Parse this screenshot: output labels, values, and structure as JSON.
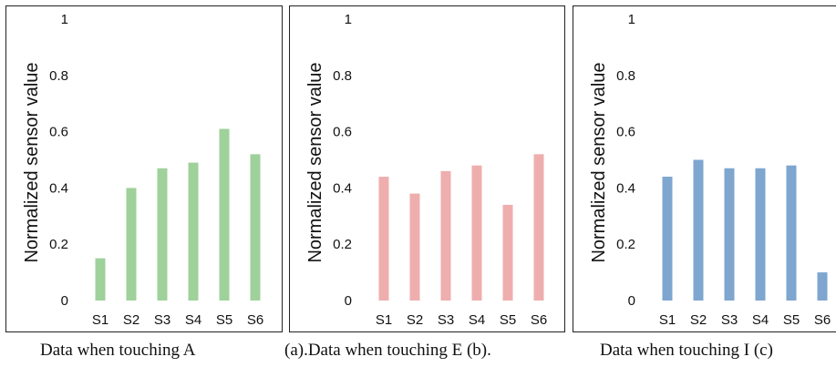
{
  "chart_data": [
    {
      "type": "bar",
      "categories": [
        "S1",
        "S2",
        "S3",
        "S4",
        "S5",
        "S6"
      ],
      "values": [
        0.15,
        0.4,
        0.47,
        0.49,
        0.61,
        0.52
      ],
      "ylabel": "Normalized sensor value",
      "ylim": [
        0,
        1
      ],
      "yticks": [
        "0",
        "0.2",
        "0.4",
        "0.6",
        "0.8",
        "1"
      ],
      "color": "#9fd19b",
      "grid": false
    },
    {
      "type": "bar",
      "categories": [
        "S1",
        "S2",
        "S3",
        "S4",
        "S5",
        "S6"
      ],
      "values": [
        0.44,
        0.38,
        0.46,
        0.48,
        0.34,
        0.52
      ],
      "ylabel": "Normalized sensor value",
      "ylim": [
        0,
        1
      ],
      "yticks": [
        "0",
        "0.2",
        "0.4",
        "0.6",
        "0.8",
        "1"
      ],
      "color": "#efaeae",
      "grid": false
    },
    {
      "type": "bar",
      "categories": [
        "S1",
        "S2",
        "S3",
        "S4",
        "S5",
        "S6"
      ],
      "values": [
        0.44,
        0.5,
        0.47,
        0.47,
        0.48,
        0.1
      ],
      "ylabel": "Normalized sensor value",
      "ylim": [
        0,
        1
      ],
      "yticks": [
        "0",
        "0.2",
        "0.4",
        "0.6",
        "0.8",
        "1"
      ],
      "color": "#7ea6cf",
      "grid": false
    }
  ],
  "captions": [
    "Data when touching A",
    "(a).Data when touching E (b).",
    "Data when touching I (c)"
  ]
}
